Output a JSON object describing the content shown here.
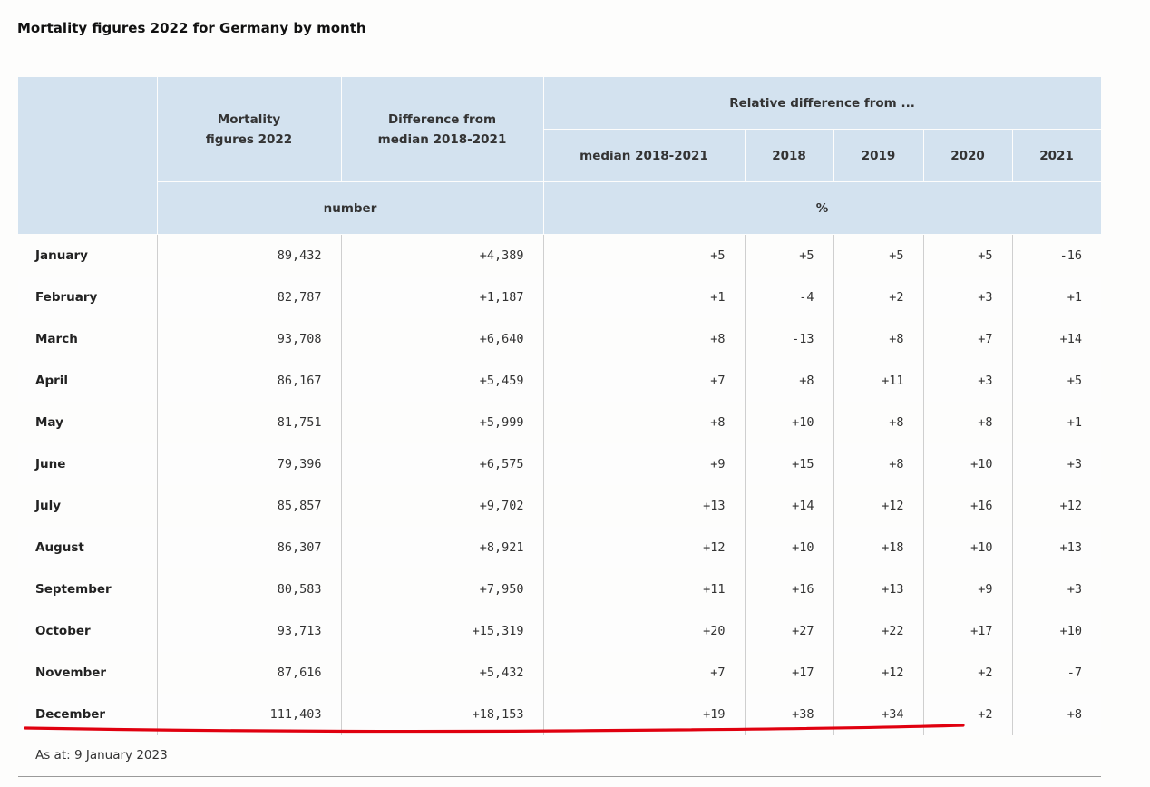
{
  "title": "Mortality figures 2022 for Germany by month",
  "header": {
    "mortality_figures": "Mortality figures 2022",
    "difference_from": "Difference from median 2018-2021",
    "relative_difference": "Relative difference from ...",
    "median": "median 2018-2021",
    "y2018": "2018",
    "y2019": "2019",
    "y2020": "2020",
    "y2021": "2021",
    "unit_number": "number",
    "unit_percent": "%"
  },
  "rows": [
    {
      "month": "January",
      "figures": "89,432",
      "diff": "+4,389",
      "median": "+5",
      "y2018": "+5",
      "y2019": "+5",
      "y2020": "+5",
      "y2021": "-16"
    },
    {
      "month": "February",
      "figures": "82,787",
      "diff": "+1,187",
      "median": "+1",
      "y2018": "-4",
      "y2019": "+2",
      "y2020": "+3",
      "y2021": "+1"
    },
    {
      "month": "March",
      "figures": "93,708",
      "diff": "+6,640",
      "median": "+8",
      "y2018": "-13",
      "y2019": "+8",
      "y2020": "+7",
      "y2021": "+14"
    },
    {
      "month": "April",
      "figures": "86,167",
      "diff": "+5,459",
      "median": "+7",
      "y2018": "+8",
      "y2019": "+11",
      "y2020": "+3",
      "y2021": "+5"
    },
    {
      "month": "May",
      "figures": "81,751",
      "diff": "+5,999",
      "median": "+8",
      "y2018": "+10",
      "y2019": "+8",
      "y2020": "+8",
      "y2021": "+1"
    },
    {
      "month": "June",
      "figures": "79,396",
      "diff": "+6,575",
      "median": "+9",
      "y2018": "+15",
      "y2019": "+8",
      "y2020": "+10",
      "y2021": "+3"
    },
    {
      "month": "July",
      "figures": "85,857",
      "diff": "+9,702",
      "median": "+13",
      "y2018": "+14",
      "y2019": "+12",
      "y2020": "+16",
      "y2021": "+12"
    },
    {
      "month": "August",
      "figures": "86,307",
      "diff": "+8,921",
      "median": "+12",
      "y2018": "+10",
      "y2019": "+18",
      "y2020": "+10",
      "y2021": "+13"
    },
    {
      "month": "September",
      "figures": "80,583",
      "diff": "+7,950",
      "median": "+11",
      "y2018": "+16",
      "y2019": "+13",
      "y2020": "+9",
      "y2021": "+3"
    },
    {
      "month": "October",
      "figures": "93,713",
      "diff": "+15,319",
      "median": "+20",
      "y2018": "+27",
      "y2019": "+22",
      "y2020": "+17",
      "y2021": "+10"
    },
    {
      "month": "November",
      "figures": "87,616",
      "diff": "+5,432",
      "median": "+7",
      "y2018": "+17",
      "y2019": "+12",
      "y2020": "+2",
      "y2021": "-7"
    },
    {
      "month": "December",
      "figures": "111,403",
      "diff": "+18,153",
      "median": "+19",
      "y2018": "+38",
      "y2019": "+34",
      "y2020": "+2",
      "y2021": "+8"
    }
  ],
  "as_at": "As at: 9 January 2023",
  "colors": {
    "header_bg": "#d3e2ef",
    "annotation_underline": "#e0000f"
  }
}
